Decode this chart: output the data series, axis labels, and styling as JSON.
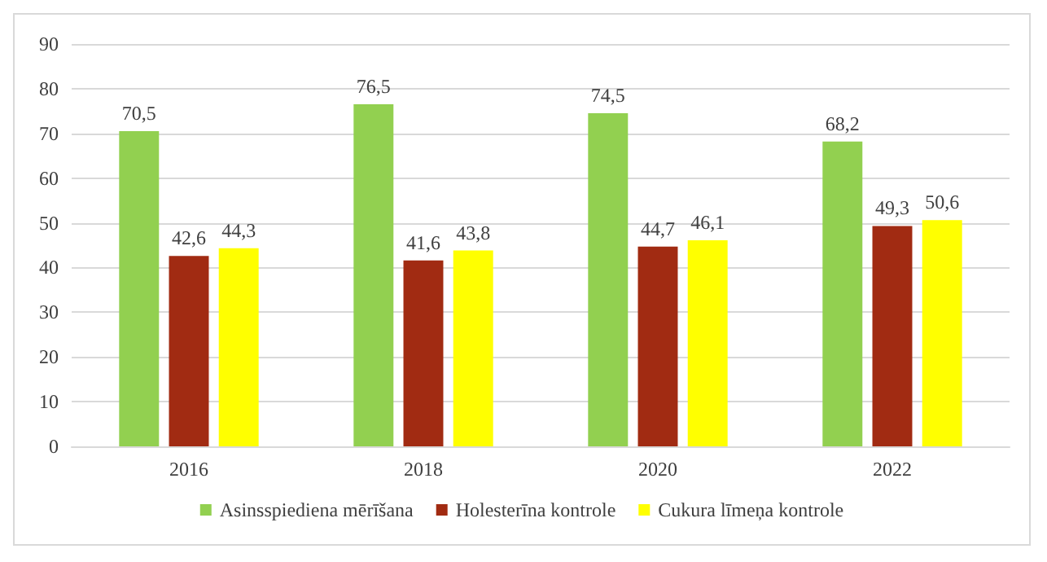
{
  "chart_data": {
    "type": "bar",
    "categories": [
      "2016",
      "2018",
      "2020",
      "2022"
    ],
    "series": [
      {
        "name": "Asinsspiediena mērīšana",
        "color": "#92d050",
        "values": [
          70.5,
          76.5,
          74.5,
          68.2
        ],
        "value_labels": [
          "70,5",
          "76,5",
          "74,5",
          "68,2"
        ]
      },
      {
        "name": "Holesterīna kontrole",
        "color": "#a12b12",
        "values": [
          42.6,
          41.6,
          44.7,
          49.3
        ],
        "value_labels": [
          "42,6",
          "41,6",
          "44,7",
          "49,3"
        ]
      },
      {
        "name": "Cukura līmeņa kontrole",
        "color": "#ffff00",
        "values": [
          44.3,
          43.8,
          46.1,
          50.6
        ],
        "value_labels": [
          "44,3",
          "43,8",
          "46,1",
          "50,6"
        ]
      }
    ],
    "ylim": [
      0,
      90
    ],
    "yticks": [
      0,
      10,
      20,
      30,
      40,
      50,
      60,
      70,
      80,
      90
    ],
    "grid": "y",
    "legend": "bottom"
  }
}
